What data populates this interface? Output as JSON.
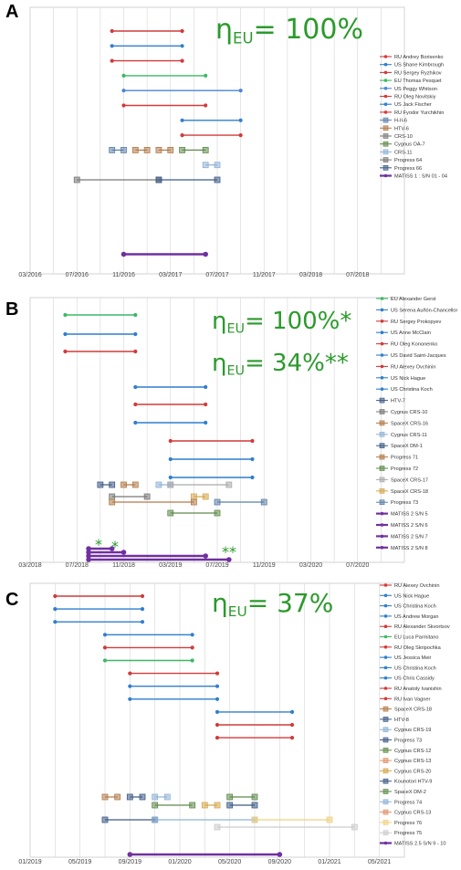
{
  "chart_data": [
    {
      "type": "timeline",
      "panel_label": "A",
      "efficiency_labels": [
        {
          "eta": "η",
          "sub": "EU",
          "text": "= 100%"
        }
      ],
      "x_ticks": [
        "03/2016",
        "07/2016",
        "11/2016",
        "03/2017",
        "07/2017",
        "11/2017",
        "03/2018",
        "07/2018"
      ],
      "x_start": "2016-03",
      "x_end": "2018-11",
      "grid": true,
      "legend_placement": "right",
      "legend": [
        {
          "label": "RU Andrey Borisenko",
          "kind": "line",
          "color": "#d23a3a"
        },
        {
          "label": "US Shane Kimbrough",
          "kind": "line",
          "color": "#2f7fce"
        },
        {
          "label": "RU Sergey Ryzhikov",
          "kind": "line",
          "color": "#d23a3a"
        },
        {
          "label": "EU Thomas Pesquet",
          "kind": "line",
          "color": "#3cb866"
        },
        {
          "label": "US Peggy Whitson",
          "kind": "line",
          "color": "#4a86d0"
        },
        {
          "label": "RU Oleg Novitskiy",
          "kind": "line",
          "color": "#d23a3a"
        },
        {
          "label": "US Jack Fischer",
          "kind": "line",
          "color": "#2f7fce"
        },
        {
          "label": "RU Fyodor Yurchikhin",
          "kind": "line",
          "color": "#d23a3a"
        },
        {
          "label": "H-II-6",
          "kind": "box",
          "color": "#5b7fa8"
        },
        {
          "label": "HTV-6",
          "kind": "box",
          "color": "#b27a48"
        },
        {
          "label": "CRS-10",
          "kind": "box",
          "color": "#7a7a7a"
        },
        {
          "label": "Cygnus OA-7",
          "kind": "box",
          "color": "#5d8a4a"
        },
        {
          "label": "CRS-11",
          "kind": "box",
          "color": "#8fb2d6"
        },
        {
          "label": "Progress 64",
          "kind": "box",
          "color": "#777777"
        },
        {
          "label": "Progress 66",
          "kind": "box",
          "color": "#3d5a85"
        },
        {
          "label": "MATISS 1 : S/N 01 - 04",
          "kind": "line",
          "color": "#7030a0"
        }
      ],
      "series": [
        {
          "row": 0,
          "start": "2016-10",
          "end": "2017-04",
          "color": "#d23a3a"
        },
        {
          "row": 1,
          "start": "2016-10",
          "end": "2017-04",
          "color": "#2f7fce"
        },
        {
          "row": 2,
          "start": "2016-10",
          "end": "2017-04",
          "color": "#d23a3a"
        },
        {
          "row": 3,
          "start": "2016-11",
          "end": "2017-06",
          "color": "#3cb866"
        },
        {
          "row": 4,
          "start": "2016-11",
          "end": "2017-09",
          "color": "#4a86d0"
        },
        {
          "row": 5,
          "start": "2016-11",
          "end": "2017-06",
          "color": "#d23a3a"
        },
        {
          "row": 6,
          "start": "2017-04",
          "end": "2017-09",
          "color": "#2f7fce"
        },
        {
          "row": 7,
          "start": "2017-04",
          "end": "2017-09",
          "color": "#d23a3a"
        },
        {
          "row": 8,
          "start": "2016-10",
          "end": "2016-11",
          "color": "#5b7fa8",
          "box": true
        },
        {
          "row": 8,
          "start": "2016-12",
          "end": "2017-01",
          "color": "#b27a48",
          "box": true
        },
        {
          "row": 8,
          "start": "2017-02",
          "end": "2017-03",
          "color": "#b27a48",
          "box": true
        },
        {
          "row": 8,
          "start": "2017-04",
          "end": "2017-06",
          "color": "#5d8a4a",
          "box": true
        },
        {
          "row": 9,
          "start": "2017-06",
          "end": "2017-07",
          "color": "#8fb2d6",
          "box": true
        },
        {
          "row": 10,
          "start": "2016-07",
          "end": "2017-02",
          "color": "#777777",
          "box": true
        },
        {
          "row": 10,
          "start": "2017-02",
          "end": "2017-07",
          "color": "#3d5a85",
          "box": true
        },
        {
          "row": 15,
          "start": "2016-11",
          "end": "2017-06",
          "color": "#7030a0",
          "thick": true
        }
      ]
    },
    {
      "type": "timeline",
      "panel_label": "B",
      "efficiency_labels": [
        {
          "eta": "η",
          "sub": "EU",
          "text": "= 100%*"
        },
        {
          "eta": "η",
          "sub": "EU",
          "text": "= 34%**"
        }
      ],
      "x_ticks": [
        "03/2018",
        "07/2018",
        "11/2018",
        "03/2019",
        "07/2019",
        "11/2019",
        "03/2020",
        "07/2020"
      ],
      "x_start": "2018-03",
      "x_end": "2020-11",
      "grid": true,
      "legend_placement": "right",
      "annotations": [
        "*",
        "*",
        "**"
      ],
      "legend": [
        {
          "label": "EU Alexander Gerst",
          "kind": "line",
          "color": "#3cb866"
        },
        {
          "label": "US Serena Auñón-Chancellor",
          "kind": "line",
          "color": "#2f7fce"
        },
        {
          "label": "RU Sergey Prokopyev",
          "kind": "line",
          "color": "#d23a3a"
        },
        {
          "label": "US Anne McClain",
          "kind": "line",
          "color": "#2f7fce"
        },
        {
          "label": "RU Oleg Kononenko",
          "kind": "line",
          "color": "#d23a3a"
        },
        {
          "label": "US David Saint-Jacques",
          "kind": "line",
          "color": "#2f7fce"
        },
        {
          "label": "RU Alexey Ovchinin",
          "kind": "line",
          "color": "#d23a3a"
        },
        {
          "label": "US Nick Hague",
          "kind": "line",
          "color": "#2f7fce"
        },
        {
          "label": "US Christina Koch",
          "kind": "line",
          "color": "#2f7fce"
        },
        {
          "label": "HTV-7",
          "kind": "box",
          "color": "#3d5a85"
        },
        {
          "label": "Cygnus CRS-10",
          "kind": "box",
          "color": "#777777"
        },
        {
          "label": "SpaceX CRS-16",
          "kind": "box",
          "color": "#b27a48"
        },
        {
          "label": "Cygnus CRS-11",
          "kind": "box",
          "color": "#8fb2d6"
        },
        {
          "label": "SpaceX DM-1",
          "kind": "box",
          "color": "#3d5a85"
        },
        {
          "label": "Progress 71",
          "kind": "box",
          "color": "#b27a48"
        },
        {
          "label": "Progress 72",
          "kind": "box",
          "color": "#5d8a4a"
        },
        {
          "label": "SpaceX CRS-17",
          "kind": "box",
          "color": "#aaaaaa"
        },
        {
          "label": "SpaceX CRS-18",
          "kind": "box",
          "color": "#d6a64a"
        },
        {
          "label": "Progress 73",
          "kind": "box",
          "color": "#5b7fa8"
        },
        {
          "label": "MATISS 2 S/N 5",
          "kind": "line",
          "color": "#7030a0"
        },
        {
          "label": "MATISS 2 S/N 6",
          "kind": "line",
          "color": "#7030a0"
        },
        {
          "label": "MATISS 2 S/N 7",
          "kind": "line",
          "color": "#7030a0"
        },
        {
          "label": "MATISS 2 S/N 8",
          "kind": "line",
          "color": "#7030a0"
        }
      ],
      "series": [
        {
          "row": 0,
          "start": "2018-06",
          "end": "2018-12",
          "color": "#3cb866"
        },
        {
          "row": 1,
          "start": "2018-06",
          "end": "2018-12",
          "color": "#2f7fce"
        },
        {
          "row": 2,
          "start": "2018-06",
          "end": "2018-12",
          "color": "#d23a3a"
        },
        {
          "row": 3,
          "start": "2018-12",
          "end": "2019-06",
          "color": "#2f7fce"
        },
        {
          "row": 4,
          "start": "2018-12",
          "end": "2019-06",
          "color": "#d23a3a"
        },
        {
          "row": 5,
          "start": "2018-12",
          "end": "2019-06",
          "color": "#2f7fce"
        },
        {
          "row": 6,
          "start": "2019-03",
          "end": "2019-10",
          "color": "#d23a3a"
        },
        {
          "row": 7,
          "start": "2019-03",
          "end": "2019-10",
          "color": "#2f7fce"
        },
        {
          "row": 8,
          "start": "2019-03",
          "end": "2019-10",
          "color": "#2f7fce"
        },
        {
          "row": 16,
          "start": "2018-09",
          "end": "2018-10",
          "color": "#3d5a85",
          "box": true
        },
        {
          "row": 16,
          "start": "2018-11",
          "end": "2018-12",
          "color": "#b27a48",
          "box": true
        },
        {
          "row": 16,
          "start": "2019-02",
          "end": "2019-03",
          "color": "#8fb2d6",
          "box": true
        },
        {
          "row": 16,
          "start": "2019-03",
          "end": "2019-08",
          "color": "#aaaaaa",
          "box": true
        },
        {
          "row": 17,
          "start": "2018-10",
          "end": "2019-01",
          "color": "#777777",
          "box": true
        },
        {
          "row": 17,
          "start": "2019-05",
          "end": "2019-06",
          "color": "#d6a64a",
          "box": true
        },
        {
          "row": 18,
          "start": "2018-10",
          "end": "2019-05",
          "color": "#b27a48",
          "box": true
        },
        {
          "row": 18,
          "start": "2019-07",
          "end": "2019-11",
          "color": "#5b7fa8",
          "box": true
        },
        {
          "row": 19,
          "start": "2019-03",
          "end": "2019-07",
          "color": "#5d8a4a",
          "box": true
        },
        {
          "row": 21,
          "start": "2018-08",
          "end": "2018-10",
          "color": "#7030a0",
          "thick": true
        },
        {
          "row": 22,
          "start": "2018-08",
          "end": "2018-11",
          "color": "#7030a0",
          "thick": true
        },
        {
          "row": 23,
          "start": "2018-08",
          "end": "2019-06",
          "color": "#7030a0",
          "thick": true
        },
        {
          "row": 24,
          "start": "2018-08",
          "end": "2019-08",
          "color": "#7030a0",
          "thick": true
        }
      ]
    },
    {
      "type": "timeline",
      "panel_label": "C",
      "efficiency_labels": [
        {
          "eta": "η",
          "sub": "EU",
          "text": "= 37%"
        }
      ],
      "x_ticks": [
        "01/2019",
        "05/2019",
        "09/2019",
        "01/2020",
        "05/2020",
        "09/2020",
        "01/2021",
        "05/2021"
      ],
      "x_start": "2019-01",
      "x_end": "2021-07",
      "grid": true,
      "legend_placement": "right",
      "legend": [
        {
          "label": "RU Alexey Ovchinin",
          "kind": "line",
          "color": "#d23a3a"
        },
        {
          "label": "US Nick Hague",
          "kind": "line",
          "color": "#2f7fce"
        },
        {
          "label": "US Christina Koch",
          "kind": "line",
          "color": "#2f7fce"
        },
        {
          "label": "US Andrew Morgan",
          "kind": "line",
          "color": "#2f7fce"
        },
        {
          "label": "RU Alexander Skvortsov",
          "kind": "line",
          "color": "#d23a3a"
        },
        {
          "label": "EU Luca Parmitano",
          "kind": "line",
          "color": "#3cb866"
        },
        {
          "label": "RU Oleg Skripochka",
          "kind": "line",
          "color": "#d23a3a"
        },
        {
          "label": "US Jessica Meir",
          "kind": "line",
          "color": "#2f7fce"
        },
        {
          "label": "US Christina Koch",
          "kind": "line",
          "color": "#2f7fce"
        },
        {
          "label": "US Chris Cassidy",
          "kind": "line",
          "color": "#2f7fce"
        },
        {
          "label": "RU Anatoly Ivanishin",
          "kind": "line",
          "color": "#d23a3a"
        },
        {
          "label": "RU Ivan Vagner",
          "kind": "line",
          "color": "#d23a3a"
        },
        {
          "label": "SpaceX CRS-18",
          "kind": "box",
          "color": "#b27a48"
        },
        {
          "label": "HTV-8",
          "kind": "box",
          "color": "#3d5a85"
        },
        {
          "label": "Cygnus CRS-19",
          "kind": "box",
          "color": "#8fb2d6"
        },
        {
          "label": "Progress 73",
          "kind": "box",
          "color": "#3d5a85"
        },
        {
          "label": "Cygnus CRS-12",
          "kind": "box",
          "color": "#5d8a4a"
        },
        {
          "label": "Cygnus CRS-13",
          "kind": "box",
          "color": "#e0926a"
        },
        {
          "label": "Cygnus CRS-20",
          "kind": "box",
          "color": "#d6a64a"
        },
        {
          "label": "Kounotori HTV-9",
          "kind": "box",
          "color": "#3d5a85"
        },
        {
          "label": "SpaceX DM-2",
          "kind": "box",
          "color": "#5d8a4a"
        },
        {
          "label": "Progress 74",
          "kind": "box",
          "color": "#8fb2d6"
        },
        {
          "label": "Cygnus CRS-13",
          "kind": "box",
          "color": "#e0926a"
        },
        {
          "label": "Progress 76",
          "kind": "box",
          "color": "#f0d080"
        },
        {
          "label": "Progress 75",
          "kind": "box",
          "color": "#cccccc"
        },
        {
          "label": "MATISS 2.5 S/N 9 - 10",
          "kind": "line",
          "color": "#7030a0"
        }
      ],
      "series": [
        {
          "row": 0,
          "start": "2019-03",
          "end": "2019-10",
          "color": "#d23a3a"
        },
        {
          "row": 1,
          "start": "2019-03",
          "end": "2019-10",
          "color": "#2f7fce"
        },
        {
          "row": 2,
          "start": "2019-03",
          "end": "2019-10",
          "color": "#2f7fce"
        },
        {
          "row": 3,
          "start": "2019-07",
          "end": "2020-02",
          "color": "#2f7fce"
        },
        {
          "row": 4,
          "start": "2019-07",
          "end": "2020-02",
          "color": "#d23a3a"
        },
        {
          "row": 5,
          "start": "2019-07",
          "end": "2020-02",
          "color": "#3cb866"
        },
        {
          "row": 6,
          "start": "2019-09",
          "end": "2020-04",
          "color": "#d23a3a"
        },
        {
          "row": 7,
          "start": "2019-09",
          "end": "2020-04",
          "color": "#2f7fce"
        },
        {
          "row": 8,
          "start": "2019-09",
          "end": "2020-04",
          "color": "#2f7fce"
        },
        {
          "row": 9,
          "start": "2020-04",
          "end": "2020-10",
          "color": "#2f7fce"
        },
        {
          "row": 10,
          "start": "2020-04",
          "end": "2020-10",
          "color": "#d23a3a"
        },
        {
          "row": 11,
          "start": "2020-04",
          "end": "2020-10",
          "color": "#d23a3a"
        },
        {
          "row": 13,
          "start": "2019-07",
          "end": "2019-08",
          "color": "#b27a48",
          "box": true
        },
        {
          "row": 13,
          "start": "2019-09",
          "end": "2019-10",
          "color": "#3d5a85",
          "box": true
        },
        {
          "row": 13,
          "start": "2019-11",
          "end": "2019-12",
          "color": "#8fb2d6",
          "box": true
        },
        {
          "row": 13,
          "start": "2020-05",
          "end": "2020-07",
          "color": "#5d8a4a",
          "box": true
        },
        {
          "row": 14,
          "start": "2019-11",
          "end": "2020-02",
          "color": "#5d8a4a",
          "box": true
        },
        {
          "row": 14,
          "start": "2020-03",
          "end": "2020-04",
          "color": "#d6a64a",
          "box": true
        },
        {
          "row": 14,
          "start": "2020-05",
          "end": "2020-07",
          "color": "#3d5a85",
          "box": true
        },
        {
          "row": 16,
          "start": "2019-07",
          "end": "2019-11",
          "color": "#3d5a85",
          "box": true
        },
        {
          "row": 16,
          "start": "2019-11",
          "end": "2020-07",
          "color": "#8fb2d6",
          "box": true
        },
        {
          "row": 16,
          "start": "2020-07",
          "end": "2021-01",
          "color": "#f0d080",
          "box": true
        },
        {
          "row": 17,
          "start": "2020-04",
          "end": "2021-03",
          "color": "#cccccc",
          "box": true
        },
        {
          "row": 19,
          "start": "2019-09",
          "end": "2020-09",
          "color": "#7030a0",
          "thick": true
        }
      ]
    }
  ]
}
